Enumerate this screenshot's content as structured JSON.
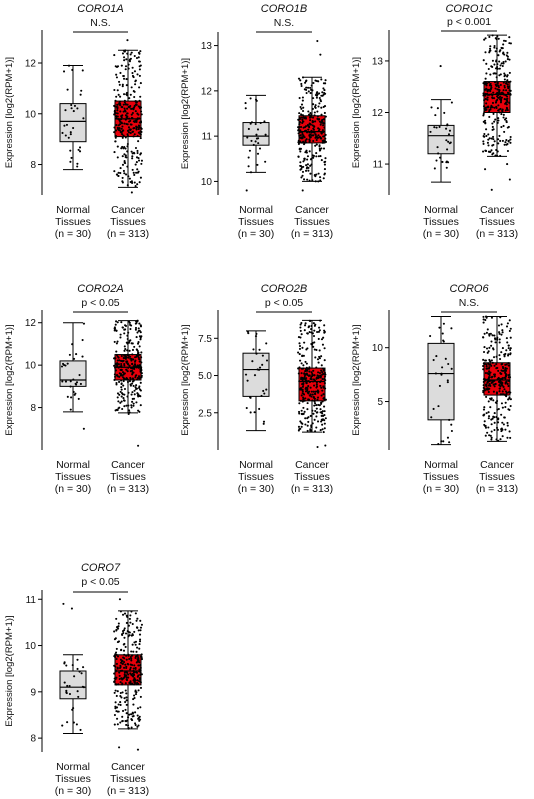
{
  "ylabel": "Expression [log2(RPM+1)]",
  "groups": [
    {
      "line1": "Normal",
      "line2": "Tissues",
      "n_label": "(n = 30)"
    },
    {
      "line1": "Cancer",
      "line2": "Tissues",
      "n_label": "(n = 313)"
    }
  ],
  "colors": {
    "normal_box": "#dcdcdc",
    "cancer_box": "#e8000b",
    "points": "#000000",
    "lines": "#000000"
  },
  "chart_data": [
    {
      "type": "box",
      "title": "CORO1A",
      "significance": "N.S.",
      "ylabel": "Expression [log2(RPM+1)]",
      "categories": [
        "Normal Tissues",
        "Cancer Tissues"
      ],
      "n": [
        30,
        313
      ],
      "ylim": [
        6.8,
        13.3
      ],
      "yticks": [
        8,
        10,
        12
      ],
      "boxes": [
        {
          "name": "Normal Tissues",
          "whisker_low": 7.8,
          "q1": 8.9,
          "median": 9.7,
          "q3": 10.4,
          "whisker_high": 11.9,
          "outliers": []
        },
        {
          "name": "Cancer Tissues",
          "whisker_low": 7.1,
          "q1": 9.1,
          "median": 9.8,
          "q3": 10.5,
          "whisker_high": 12.5,
          "outliers": [
            6.9,
            12.9
          ]
        }
      ]
    },
    {
      "type": "box",
      "title": "CORO1B",
      "significance": "N.S.",
      "ylabel": "Expression [log2(RPM+1)]",
      "categories": [
        "Normal Tissues",
        "Cancer Tissues"
      ],
      "n": [
        30,
        313
      ],
      "ylim": [
        9.7,
        13.3
      ],
      "yticks": [
        10,
        11,
        12,
        13
      ],
      "boxes": [
        {
          "name": "Normal Tissues",
          "whisker_low": 10.2,
          "q1": 10.8,
          "median": 11.0,
          "q3": 11.3,
          "whisker_high": 11.9,
          "outliers": [
            9.8
          ]
        },
        {
          "name": "Cancer Tissues",
          "whisker_low": 10.0,
          "q1": 10.85,
          "median": 11.1,
          "q3": 11.45,
          "whisker_high": 12.3,
          "outliers": [
            9.8,
            12.8,
            13.1
          ]
        }
      ]
    },
    {
      "type": "box",
      "title": "CORO1C",
      "significance": "p < 0.001",
      "ylabel": "Expression [log2(RPM+1)]",
      "categories": [
        "Normal Tissues",
        "Cancer Tissues"
      ],
      "n": [
        30,
        313
      ],
      "ylim": [
        10.4,
        13.6
      ],
      "yticks": [
        11,
        12,
        13
      ],
      "boxes": [
        {
          "name": "Normal Tissues",
          "whisker_low": 10.65,
          "q1": 11.2,
          "median": 11.55,
          "q3": 11.75,
          "whisker_high": 12.25,
          "outliers": [
            12.9
          ]
        },
        {
          "name": "Cancer Tissues",
          "whisker_low": 11.15,
          "q1": 12.0,
          "median": 12.35,
          "q3": 12.6,
          "whisker_high": 13.5,
          "outliers": [
            10.5,
            10.7,
            10.9,
            11.0
          ]
        }
      ]
    },
    {
      "type": "box",
      "title": "CORO2A",
      "significance": "p < 0.05",
      "ylabel": "Expression [log2(RPM+1)]",
      "categories": [
        "Normal Tissues",
        "Cancer Tissues"
      ],
      "n": [
        30,
        313
      ],
      "ylim": [
        6.0,
        12.6
      ],
      "yticks": [
        8,
        10,
        12
      ],
      "boxes": [
        {
          "name": "Normal Tissues",
          "whisker_low": 7.8,
          "q1": 9.0,
          "median": 9.3,
          "q3": 10.2,
          "whisker_high": 12.0,
          "outliers": [
            7.0
          ]
        },
        {
          "name": "Cancer Tissues",
          "whisker_low": 7.75,
          "q1": 9.3,
          "median": 9.9,
          "q3": 10.5,
          "whisker_high": 12.1,
          "outliers": [
            6.2,
            7.7
          ]
        }
      ]
    },
    {
      "type": "box",
      "title": "CORO2B",
      "significance": "p < 0.05",
      "ylabel": "Expression [log2(RPM+1)]",
      "categories": [
        "Normal Tissues",
        "Cancer Tissues"
      ],
      "n": [
        30,
        313
      ],
      "ylim": [
        0.0,
        9.4
      ],
      "yticks": [
        2.5,
        5.0,
        7.5
      ],
      "boxes": [
        {
          "name": "Normal Tissues",
          "whisker_low": 1.3,
          "q1": 3.6,
          "median": 5.4,
          "q3": 6.5,
          "whisker_high": 8.0,
          "outliers": []
        },
        {
          "name": "Cancer Tissues",
          "whisker_low": 1.2,
          "q1": 3.3,
          "median": 4.6,
          "q3": 5.5,
          "whisker_high": 8.7,
          "outliers": [
            0.2,
            0.3
          ]
        }
      ]
    },
    {
      "type": "box",
      "title": "CORO6",
      "significance": "N.S.",
      "ylabel": "Expression [log2(RPM+1)]",
      "categories": [
        "Normal Tissues",
        "Cancer Tissues"
      ],
      "n": [
        30,
        313
      ],
      "ylim": [
        0.5,
        13.5
      ],
      "yticks": [
        5,
        10
      ],
      "boxes": [
        {
          "name": "Normal Tissues",
          "whisker_low": 1.0,
          "q1": 3.3,
          "median": 7.6,
          "q3": 10.4,
          "whisker_high": 12.9,
          "outliers": []
        },
        {
          "name": "Cancer Tissues",
          "whisker_low": 1.3,
          "q1": 5.6,
          "median": 7.0,
          "q3": 8.6,
          "whisker_high": 12.9,
          "outliers": []
        }
      ]
    },
    {
      "type": "box",
      "title": "CORO7",
      "significance": "p < 0.05",
      "ylabel": "Expression [log2(RPM+1)]",
      "categories": [
        "Normal Tissues",
        "Cancer Tissues"
      ],
      "n": [
        30,
        313
      ],
      "ylim": [
        7.7,
        11.2
      ],
      "yticks": [
        8,
        9,
        10,
        11
      ],
      "boxes": [
        {
          "name": "Normal Tissues",
          "whisker_low": 8.1,
          "q1": 8.85,
          "median": 9.1,
          "q3": 9.45,
          "whisker_high": 9.8,
          "outliers": [
            10.9,
            10.8
          ]
        },
        {
          "name": "Cancer Tissues",
          "whisker_low": 8.2,
          "q1": 9.15,
          "median": 9.45,
          "q3": 9.8,
          "whisker_high": 10.75,
          "outliers": [
            7.75,
            7.8,
            11.0
          ]
        }
      ]
    }
  ]
}
